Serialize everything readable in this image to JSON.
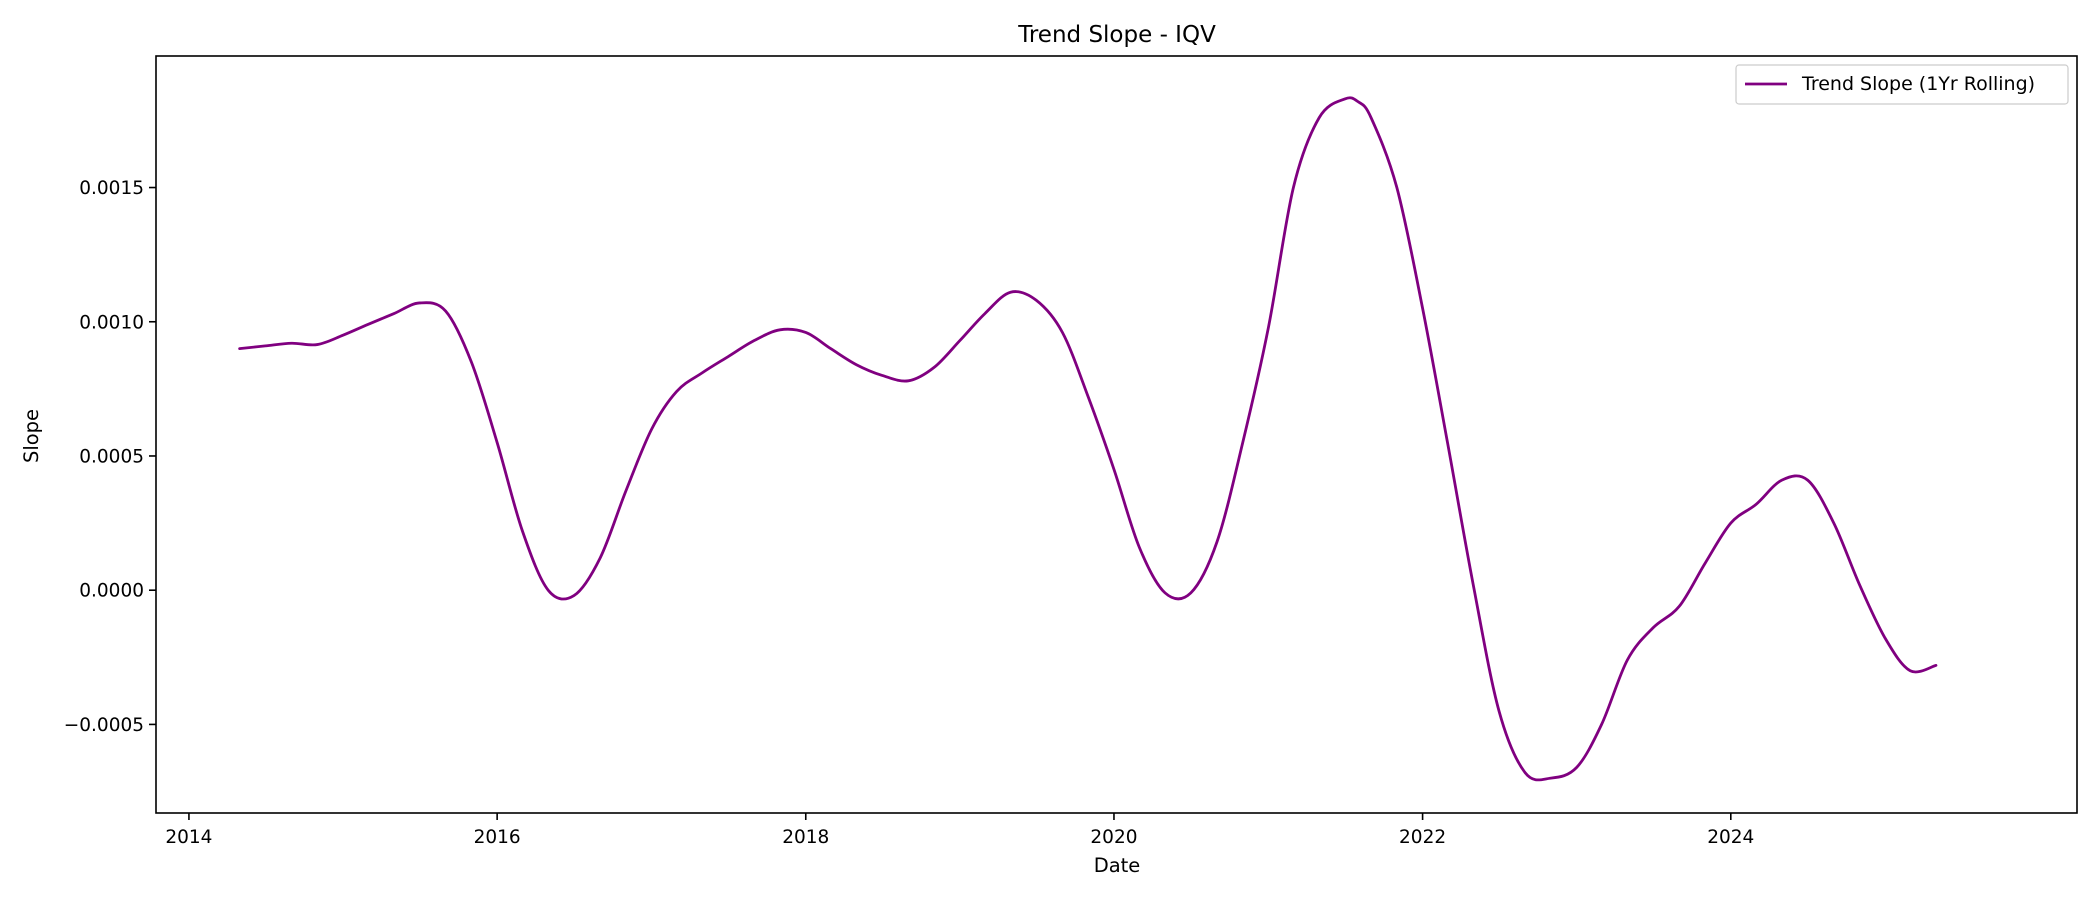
{
  "chart_data": {
    "type": "line",
    "title": "Trend Slope - IQV",
    "xlabel": "Date",
    "ylabel": "Slope",
    "xlim": [
      "2013-10-15",
      "2026-03-31"
    ],
    "ylim": [
      -0.00083,
      0.00199
    ],
    "x_ticks": [
      "2014-01-01",
      "2016-01-01",
      "2018-01-01",
      "2020-01-01",
      "2022-01-01",
      "2024-01-01"
    ],
    "x_tick_labels": [
      "2014",
      "2016",
      "2018",
      "2020",
      "2022",
      "2024"
    ],
    "y_ticks": [
      -0.0005,
      0.0,
      0.0005,
      0.001,
      0.0015
    ],
    "y_tick_labels": [
      "−0.0005",
      "0.0000",
      "0.0005",
      "0.0010",
      "0.0015"
    ],
    "grid": false,
    "legend_position": "upper right",
    "series": [
      {
        "name": "Trend Slope (1Yr Rolling)",
        "color": "#800080",
        "x": [
          "2014-05-01",
          "2014-07-01",
          "2014-09-01",
          "2014-11-01",
          "2015-01-01",
          "2015-03-01",
          "2015-05-01",
          "2015-07-01",
          "2015-09-01",
          "2015-11-01",
          "2016-01-01",
          "2016-03-01",
          "2016-05-01",
          "2016-07-01",
          "2016-09-01",
          "2016-11-01",
          "2017-01-01",
          "2017-03-01",
          "2017-05-01",
          "2017-07-01",
          "2017-09-01",
          "2017-11-01",
          "2018-01-01",
          "2018-03-01",
          "2018-05-01",
          "2018-07-01",
          "2018-09-01",
          "2018-11-01",
          "2019-01-01",
          "2019-03-01",
          "2019-05-01",
          "2019-07-01",
          "2019-09-01",
          "2019-11-01",
          "2020-01-01",
          "2020-03-01",
          "2020-05-01",
          "2020-07-01",
          "2020-09-01",
          "2020-11-01",
          "2021-01-01",
          "2021-03-01",
          "2021-05-01",
          "2021-07-01",
          "2021-08-01",
          "2021-09-01",
          "2021-11-01",
          "2022-01-01",
          "2022-03-01",
          "2022-05-01",
          "2022-07-01",
          "2022-09-01",
          "2022-11-01",
          "2023-01-01",
          "2023-03-01",
          "2023-05-01",
          "2023-07-01",
          "2023-09-01",
          "2023-11-01",
          "2024-01-01",
          "2024-03-01",
          "2024-05-01",
          "2024-07-01",
          "2024-09-01",
          "2024-11-01",
          "2025-01-01",
          "2025-03-01",
          "2025-05-01"
        ],
        "y": [
          0.0009,
          0.00091,
          0.00092,
          0.000915,
          0.00095,
          0.00099,
          0.00103,
          0.00107,
          0.00104,
          0.00085,
          0.00055,
          0.00022,
          0.0,
          -2e-05,
          0.00012,
          0.00037,
          0.0006,
          0.00074,
          0.00081,
          0.00087,
          0.00093,
          0.00097,
          0.00096,
          0.0009,
          0.00084,
          0.0008,
          0.00078,
          0.00083,
          0.00093,
          0.00103,
          0.00111,
          0.00108,
          0.00096,
          0.00072,
          0.00045,
          0.00016,
          -1e-05,
          -1e-05,
          0.00018,
          0.00055,
          0.00098,
          0.0015,
          0.00176,
          0.00183,
          0.00182,
          0.00176,
          0.0015,
          0.00105,
          0.00055,
          2e-05,
          -0.00045,
          -0.00068,
          -0.0007,
          -0.00066,
          -0.0005,
          -0.00026,
          -0.00014,
          -6e-05,
          0.0001,
          0.00025,
          0.00032,
          0.00041,
          0.00041,
          0.00025,
          2e-05,
          -0.00018,
          -0.0003,
          -0.00028
        ]
      }
    ]
  }
}
